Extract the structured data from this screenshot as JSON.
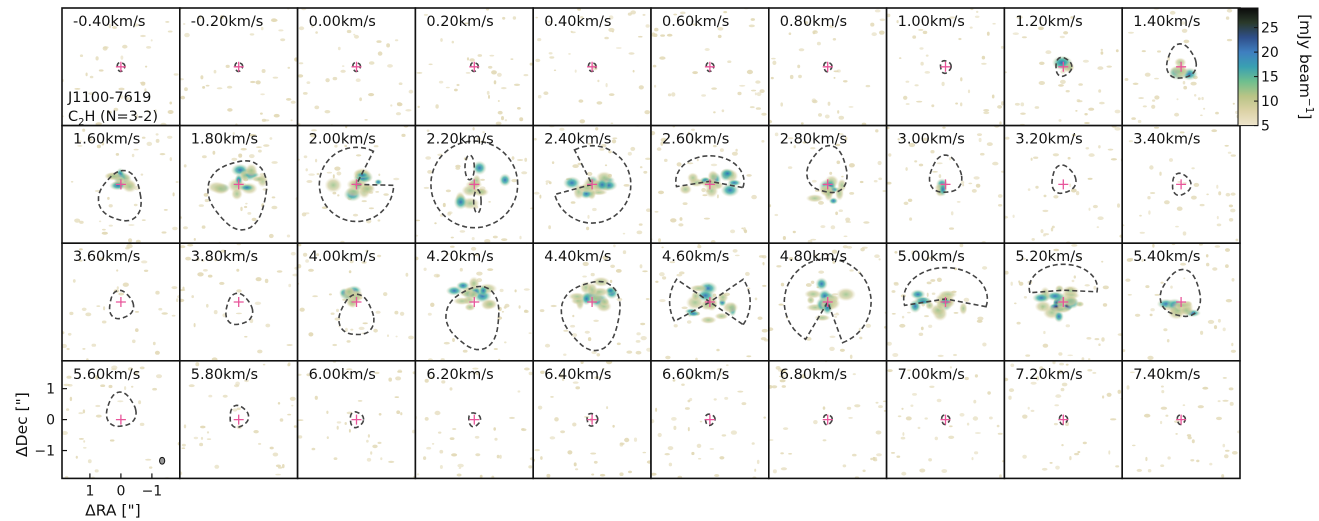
{
  "chart_data": {
    "type": "channel_map",
    "source_label": "J1100-7619",
    "line_label_main": "C",
    "line_label_sub": "2",
    "line_label_rest": "H (N=3-2)",
    "channels": [
      "-0.40km/s",
      "-0.20km/s",
      "0.00km/s",
      "0.20km/s",
      "0.40km/s",
      "0.60km/s",
      "0.80km/s",
      "1.00km/s",
      "1.20km/s",
      "1.40km/s",
      "1.60km/s",
      "1.80km/s",
      "2.00km/s",
      "2.20km/s",
      "2.40km/s",
      "2.60km/s",
      "2.80km/s",
      "3.00km/s",
      "3.20km/s",
      "3.40km/s",
      "3.60km/s",
      "3.80km/s",
      "4.00km/s",
      "4.20km/s",
      "4.40km/s",
      "4.60km/s",
      "4.80km/s",
      "5.00km/s",
      "5.20km/s",
      "5.40km/s",
      "5.60km/s",
      "5.80km/s",
      "6.00km/s",
      "6.20km/s",
      "6.40km/s",
      "6.60km/s",
      "6.80km/s",
      "7.00km/s",
      "7.20km/s",
      "7.40km/s"
    ],
    "grid": {
      "rows": 4,
      "cols": 10
    },
    "x_axis": {
      "label": "ΔRA [\"]",
      "ticks": [
        "1",
        "0",
        "−1"
      ],
      "tick_values": [
        1,
        0,
        -1
      ],
      "range": [
        1.9,
        -1.9
      ]
    },
    "y_axis": {
      "label": "ΔDec [\"]",
      "ticks": [
        "1",
        "0",
        "−1"
      ],
      "tick_values": [
        1,
        0,
        -1
      ],
      "range": [
        -1.9,
        1.9
      ]
    },
    "colorbar": {
      "label": "[mJy beam",
      "label_exp": "−1",
      "label_end": "]",
      "ticks": [
        "5",
        "10",
        "15",
        "20",
        "25"
      ],
      "tick_values": [
        5,
        10,
        15,
        20,
        25
      ],
      "range": [
        5,
        29
      ],
      "colors": [
        "#eee5cd",
        "#dcd2a6",
        "#b9c486",
        "#6fbf8e",
        "#3aa0b2",
        "#3f7fc0",
        "#2f4f8a",
        "#2a3a2a",
        "#0b0b0b"
      ]
    },
    "marker_color": "#e8559a",
    "contour_color": "#444444"
  }
}
